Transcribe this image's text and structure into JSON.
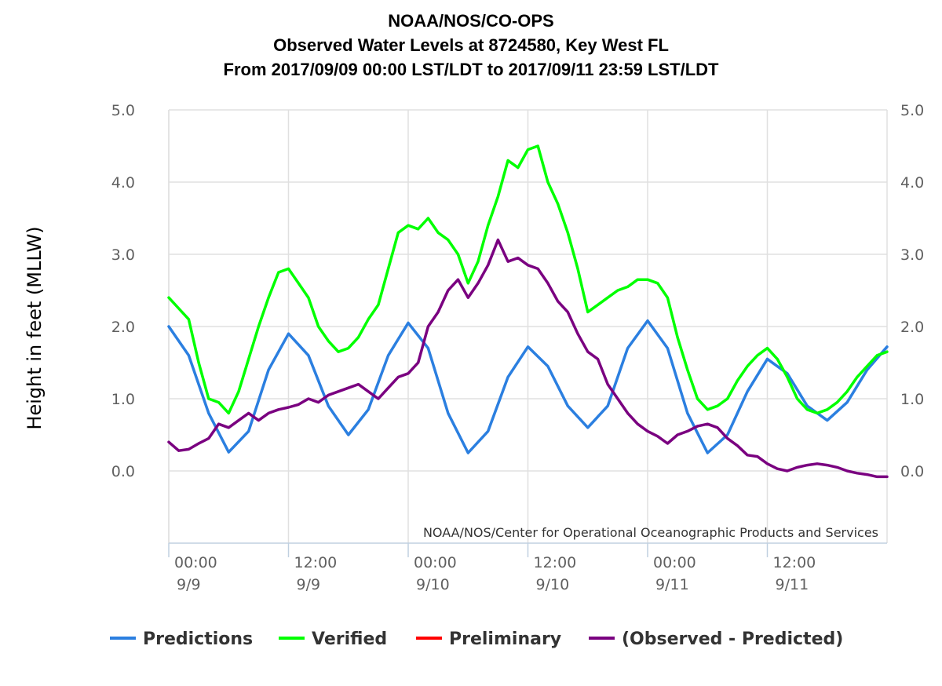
{
  "chart_data": {
    "type": "line",
    "title_lines": [
      "NOAA/NOS/CO-OPS",
      "Observed Water Levels at 8724580, Key West FL",
      "From 2017/09/09 00:00 LST/LDT to 2017/09/11 23:59 LST/LDT"
    ],
    "ylabel": "Height in feet (MLLW)",
    "credit": "NOAA/NOS/Center for Operational Oceanographic Products and Services",
    "ylim": [
      -1.0,
      5.0
    ],
    "xlim": [
      "2017-09-09 00:00",
      "2017-09-12 00:00"
    ],
    "y_tick_values": [
      0,
      1,
      2,
      3,
      4,
      5
    ],
    "y_tick_labels": [
      "0.0",
      "1.0",
      "2.0",
      "3.0",
      "4.0",
      "5.0"
    ],
    "x_ticks": [
      {
        "time": "2017-09-09 00:00",
        "line1": "00:00",
        "line2": "9/9"
      },
      {
        "time": "2017-09-09 12:00",
        "line1": "12:00",
        "line2": "9/9"
      },
      {
        "time": "2017-09-10 00:00",
        "line1": "00:00",
        "line2": "9/10"
      },
      {
        "time": "2017-09-10 12:00",
        "line1": "12:00",
        "line2": "9/10"
      },
      {
        "time": "2017-09-11 00:00",
        "line1": "00:00",
        "line2": "9/11"
      },
      {
        "time": "2017-09-11 12:00",
        "line1": "12:00",
        "line2": "9/11"
      }
    ],
    "grid": {
      "vertical": true,
      "horizontal": true
    },
    "legend_position": "bottom",
    "series": [
      {
        "name": "Predictions",
        "color": "#2b7fe0",
        "points": [
          [
            "2017-09-09 00:00",
            2.0
          ],
          [
            "2017-09-09 02:00",
            1.6
          ],
          [
            "2017-09-09 04:00",
            0.8
          ],
          [
            "2017-09-09 06:00",
            0.26
          ],
          [
            "2017-09-09 08:00",
            0.55
          ],
          [
            "2017-09-09 10:00",
            1.4
          ],
          [
            "2017-09-09 12:00",
            1.9
          ],
          [
            "2017-09-09 14:00",
            1.6
          ],
          [
            "2017-09-09 16:00",
            0.9
          ],
          [
            "2017-09-09 18:00",
            0.5
          ],
          [
            "2017-09-09 20:00",
            0.85
          ],
          [
            "2017-09-09 22:00",
            1.6
          ],
          [
            "2017-09-10 00:00",
            2.05
          ],
          [
            "2017-09-10 02:00",
            1.7
          ],
          [
            "2017-09-10 04:00",
            0.8
          ],
          [
            "2017-09-10 06:00",
            0.25
          ],
          [
            "2017-09-10 08:00",
            0.55
          ],
          [
            "2017-09-10 10:00",
            1.3
          ],
          [
            "2017-09-10 12:00",
            1.72
          ],
          [
            "2017-09-10 14:00",
            1.45
          ],
          [
            "2017-09-10 16:00",
            0.9
          ],
          [
            "2017-09-10 18:00",
            0.6
          ],
          [
            "2017-09-10 20:00",
            0.9
          ],
          [
            "2017-09-10 22:00",
            1.7
          ],
          [
            "2017-09-11 00:00",
            2.08
          ],
          [
            "2017-09-11 02:00",
            1.7
          ],
          [
            "2017-09-11 04:00",
            0.8
          ],
          [
            "2017-09-11 06:00",
            0.25
          ],
          [
            "2017-09-11 08:00",
            0.5
          ],
          [
            "2017-09-11 10:00",
            1.1
          ],
          [
            "2017-09-11 12:00",
            1.55
          ],
          [
            "2017-09-11 14:00",
            1.35
          ],
          [
            "2017-09-11 16:00",
            0.9
          ],
          [
            "2017-09-11 18:00",
            0.7
          ],
          [
            "2017-09-11 20:00",
            0.95
          ],
          [
            "2017-09-11 22:00",
            1.4
          ],
          [
            "2017-09-12 00:00",
            1.72
          ]
        ]
      },
      {
        "name": "Verified",
        "color": "#00ff00",
        "points": [
          [
            "2017-09-09 00:00",
            2.4
          ],
          [
            "2017-09-09 01:00",
            2.25
          ],
          [
            "2017-09-09 02:00",
            2.1
          ],
          [
            "2017-09-09 03:00",
            1.5
          ],
          [
            "2017-09-09 04:00",
            1.0
          ],
          [
            "2017-09-09 05:00",
            0.95
          ],
          [
            "2017-09-09 06:00",
            0.8
          ],
          [
            "2017-09-09 07:00",
            1.1
          ],
          [
            "2017-09-09 08:00",
            1.55
          ],
          [
            "2017-09-09 09:00",
            2.0
          ],
          [
            "2017-09-09 10:00",
            2.4
          ],
          [
            "2017-09-09 11:00",
            2.75
          ],
          [
            "2017-09-09 12:00",
            2.8
          ],
          [
            "2017-09-09 13:00",
            2.6
          ],
          [
            "2017-09-09 14:00",
            2.4
          ],
          [
            "2017-09-09 15:00",
            2.0
          ],
          [
            "2017-09-09 16:00",
            1.8
          ],
          [
            "2017-09-09 17:00",
            1.65
          ],
          [
            "2017-09-09 18:00",
            1.7
          ],
          [
            "2017-09-09 19:00",
            1.85
          ],
          [
            "2017-09-09 20:00",
            2.1
          ],
          [
            "2017-09-09 21:00",
            2.3
          ],
          [
            "2017-09-09 22:00",
            2.8
          ],
          [
            "2017-09-09 23:00",
            3.3
          ],
          [
            "2017-09-10 00:00",
            3.4
          ],
          [
            "2017-09-10 01:00",
            3.35
          ],
          [
            "2017-09-10 02:00",
            3.5
          ],
          [
            "2017-09-10 03:00",
            3.3
          ],
          [
            "2017-09-10 04:00",
            3.2
          ],
          [
            "2017-09-10 05:00",
            3.0
          ],
          [
            "2017-09-10 06:00",
            2.6
          ],
          [
            "2017-09-10 07:00",
            2.9
          ],
          [
            "2017-09-10 08:00",
            3.4
          ],
          [
            "2017-09-10 09:00",
            3.8
          ],
          [
            "2017-09-10 10:00",
            4.3
          ],
          [
            "2017-09-10 11:00",
            4.2
          ],
          [
            "2017-09-10 12:00",
            4.45
          ],
          [
            "2017-09-10 13:00",
            4.5
          ],
          [
            "2017-09-10 14:00",
            4.0
          ],
          [
            "2017-09-10 15:00",
            3.7
          ],
          [
            "2017-09-10 16:00",
            3.3
          ],
          [
            "2017-09-10 17:00",
            2.8
          ],
          [
            "2017-09-10 18:00",
            2.2
          ],
          [
            "2017-09-10 19:00",
            2.3
          ],
          [
            "2017-09-10 20:00",
            2.4
          ],
          [
            "2017-09-10 21:00",
            2.5
          ],
          [
            "2017-09-10 22:00",
            2.55
          ],
          [
            "2017-09-10 23:00",
            2.65
          ],
          [
            "2017-09-11 00:00",
            2.65
          ],
          [
            "2017-09-11 01:00",
            2.6
          ],
          [
            "2017-09-11 02:00",
            2.4
          ],
          [
            "2017-09-11 03:00",
            1.85
          ],
          [
            "2017-09-11 04:00",
            1.4
          ],
          [
            "2017-09-11 05:00",
            1.0
          ],
          [
            "2017-09-11 06:00",
            0.85
          ],
          [
            "2017-09-11 07:00",
            0.9
          ],
          [
            "2017-09-11 08:00",
            1.0
          ],
          [
            "2017-09-11 09:00",
            1.25
          ],
          [
            "2017-09-11 10:00",
            1.45
          ],
          [
            "2017-09-11 11:00",
            1.6
          ],
          [
            "2017-09-11 12:00",
            1.7
          ],
          [
            "2017-09-11 13:00",
            1.55
          ],
          [
            "2017-09-11 14:00",
            1.3
          ],
          [
            "2017-09-11 15:00",
            1.0
          ],
          [
            "2017-09-11 16:00",
            0.85
          ],
          [
            "2017-09-11 17:00",
            0.8
          ],
          [
            "2017-09-11 18:00",
            0.85
          ],
          [
            "2017-09-11 19:00",
            0.95
          ],
          [
            "2017-09-11 20:00",
            1.1
          ],
          [
            "2017-09-11 21:00",
            1.3
          ],
          [
            "2017-09-11 22:00",
            1.45
          ],
          [
            "2017-09-11 23:00",
            1.6
          ],
          [
            "2017-09-12 00:00",
            1.65
          ]
        ]
      },
      {
        "name": "Preliminary",
        "color": "#ff0000",
        "points": []
      },
      {
        "name": "(Observed - Predicted)",
        "color": "#7a0080",
        "points": [
          [
            "2017-09-09 00:00",
            0.4
          ],
          [
            "2017-09-09 01:00",
            0.28
          ],
          [
            "2017-09-09 02:00",
            0.3
          ],
          [
            "2017-09-09 03:00",
            0.38
          ],
          [
            "2017-09-09 04:00",
            0.45
          ],
          [
            "2017-09-09 05:00",
            0.65
          ],
          [
            "2017-09-09 06:00",
            0.6
          ],
          [
            "2017-09-09 07:00",
            0.7
          ],
          [
            "2017-09-09 08:00",
            0.8
          ],
          [
            "2017-09-09 09:00",
            0.7
          ],
          [
            "2017-09-09 10:00",
            0.8
          ],
          [
            "2017-09-09 11:00",
            0.85
          ],
          [
            "2017-09-09 12:00",
            0.88
          ],
          [
            "2017-09-09 13:00",
            0.92
          ],
          [
            "2017-09-09 14:00",
            1.0
          ],
          [
            "2017-09-09 15:00",
            0.95
          ],
          [
            "2017-09-09 16:00",
            1.05
          ],
          [
            "2017-09-09 17:00",
            1.1
          ],
          [
            "2017-09-09 18:00",
            1.15
          ],
          [
            "2017-09-09 19:00",
            1.2
          ],
          [
            "2017-09-09 20:00",
            1.1
          ],
          [
            "2017-09-09 21:00",
            1.0
          ],
          [
            "2017-09-09 22:00",
            1.15
          ],
          [
            "2017-09-09 23:00",
            1.3
          ],
          [
            "2017-09-10 00:00",
            1.35
          ],
          [
            "2017-09-10 01:00",
            1.5
          ],
          [
            "2017-09-10 02:00",
            2.0
          ],
          [
            "2017-09-10 03:00",
            2.2
          ],
          [
            "2017-09-10 04:00",
            2.5
          ],
          [
            "2017-09-10 05:00",
            2.65
          ],
          [
            "2017-09-10 06:00",
            2.4
          ],
          [
            "2017-09-10 07:00",
            2.6
          ],
          [
            "2017-09-10 08:00",
            2.85
          ],
          [
            "2017-09-10 09:00",
            3.2
          ],
          [
            "2017-09-10 10:00",
            2.9
          ],
          [
            "2017-09-10 11:00",
            2.95
          ],
          [
            "2017-09-10 12:00",
            2.85
          ],
          [
            "2017-09-10 13:00",
            2.8
          ],
          [
            "2017-09-10 14:00",
            2.6
          ],
          [
            "2017-09-10 15:00",
            2.35
          ],
          [
            "2017-09-10 16:00",
            2.2
          ],
          [
            "2017-09-10 17:00",
            1.9
          ],
          [
            "2017-09-10 18:00",
            1.65
          ],
          [
            "2017-09-10 19:00",
            1.55
          ],
          [
            "2017-09-10 20:00",
            1.2
          ],
          [
            "2017-09-10 21:00",
            1.0
          ],
          [
            "2017-09-10 22:00",
            0.8
          ],
          [
            "2017-09-10 23:00",
            0.65
          ],
          [
            "2017-09-11 00:00",
            0.55
          ],
          [
            "2017-09-11 01:00",
            0.48
          ],
          [
            "2017-09-11 02:00",
            0.38
          ],
          [
            "2017-09-11 03:00",
            0.5
          ],
          [
            "2017-09-11 04:00",
            0.55
          ],
          [
            "2017-09-11 05:00",
            0.62
          ],
          [
            "2017-09-11 06:00",
            0.65
          ],
          [
            "2017-09-11 07:00",
            0.6
          ],
          [
            "2017-09-11 08:00",
            0.45
          ],
          [
            "2017-09-11 09:00",
            0.35
          ],
          [
            "2017-09-11 10:00",
            0.22
          ],
          [
            "2017-09-11 11:00",
            0.2
          ],
          [
            "2017-09-11 12:00",
            0.1
          ],
          [
            "2017-09-11 13:00",
            0.03
          ],
          [
            "2017-09-11 14:00",
            0.0
          ],
          [
            "2017-09-11 15:00",
            0.05
          ],
          [
            "2017-09-11 16:00",
            0.08
          ],
          [
            "2017-09-11 17:00",
            0.1
          ],
          [
            "2017-09-11 18:00",
            0.08
          ],
          [
            "2017-09-11 19:00",
            0.05
          ],
          [
            "2017-09-11 20:00",
            0.0
          ],
          [
            "2017-09-11 21:00",
            -0.03
          ],
          [
            "2017-09-11 22:00",
            -0.05
          ],
          [
            "2017-09-11 23:00",
            -0.08
          ],
          [
            "2017-09-12 00:00",
            -0.08
          ]
        ]
      }
    ]
  }
}
